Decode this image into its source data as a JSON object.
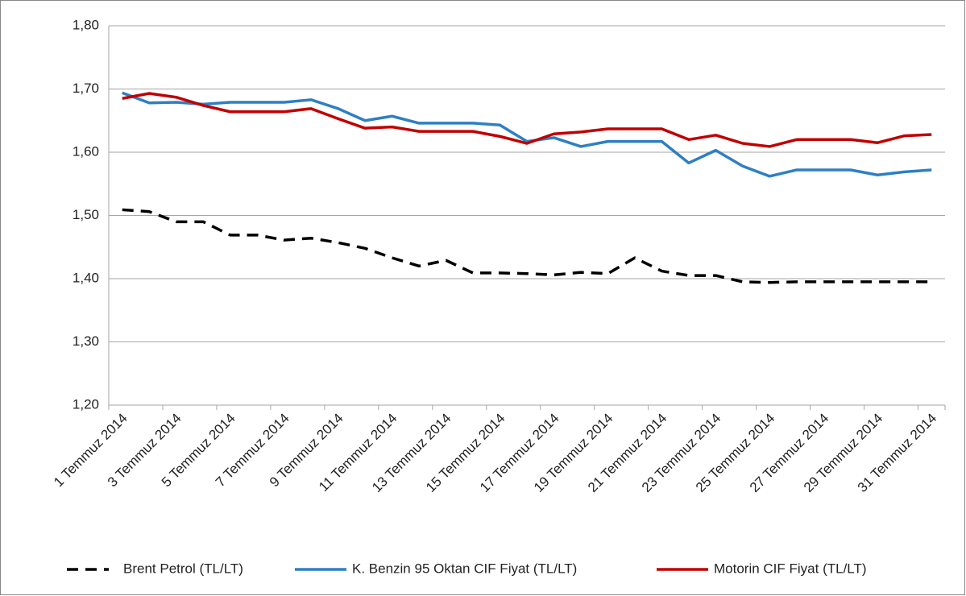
{
  "chart_data": {
    "type": "line",
    "categories": [
      "1 Temmuz 2014",
      null,
      "3 Temmuz 2014",
      null,
      "5 Temmuz 2014",
      null,
      "7 Temmuz 2014",
      null,
      "9 Temmuz 2014",
      null,
      "11 Temmuz 2014",
      null,
      "13 Temmuz 2014",
      null,
      "15 Temmuz 2014",
      null,
      "17 Temmuz 2014",
      null,
      "19 Temmuz 2014",
      null,
      "21 Temmuz 2014",
      null,
      "23 Temmuz 2014",
      null,
      "25 Temmuz 2014",
      null,
      "27 Temmuz 2014",
      null,
      "29 Temmuz 2014",
      null,
      "31 Temmuz 2014"
    ],
    "series": [
      {
        "name": "Brent Petrol (TL/LT)",
        "color": "#000000",
        "dash": "dashed",
        "values": [
          1.509,
          1.506,
          1.49,
          1.49,
          1.469,
          1.469,
          1.461,
          1.464,
          1.457,
          1.448,
          1.433,
          1.42,
          1.429,
          1.409,
          1.409,
          1.408,
          1.406,
          1.41,
          1.408,
          1.433,
          1.412,
          1.405,
          1.405,
          1.395,
          1.394,
          1.395,
          1.395,
          1.395,
          1.395,
          1.395,
          1.395
        ]
      },
      {
        "name": "K. Benzin 95 Oktan CIF Fiyat (TL/LT)",
        "color": "#2e7fc4",
        "values": [
          1.694,
          1.678,
          1.679,
          1.676,
          1.679,
          1.679,
          1.679,
          1.683,
          1.669,
          1.65,
          1.657,
          1.646,
          1.646,
          1.646,
          1.643,
          1.617,
          1.623,
          1.609,
          1.617,
          1.617,
          1.617,
          1.583,
          1.603,
          1.578,
          1.562,
          1.572,
          1.572,
          1.572,
          1.564,
          1.569,
          1.572
        ]
      },
      {
        "name": "Motorin CIF Fiyat (TL/LT)",
        "color": "#c00000",
        "values": [
          1.685,
          1.693,
          1.687,
          1.674,
          1.664,
          1.664,
          1.664,
          1.669,
          1.653,
          1.638,
          1.64,
          1.633,
          1.633,
          1.633,
          1.625,
          1.614,
          1.629,
          1.632,
          1.637,
          1.637,
          1.637,
          1.62,
          1.627,
          1.614,
          1.609,
          1.62,
          1.62,
          1.62,
          1.615,
          1.626,
          1.628
        ]
      }
    ],
    "ylim": [
      1.2,
      1.8
    ],
    "yticks": [
      {
        "value": 1.2,
        "label": "1,20"
      },
      {
        "value": 1.3,
        "label": "1,30"
      },
      {
        "value": 1.4,
        "label": "1,40"
      },
      {
        "value": 1.5,
        "label": "1,50"
      },
      {
        "value": 1.6,
        "label": "1,60"
      },
      {
        "value": 1.7,
        "label": "1,70"
      },
      {
        "value": 1.8,
        "label": "1,80"
      }
    ],
    "grid": true,
    "legend": "bottom"
  }
}
